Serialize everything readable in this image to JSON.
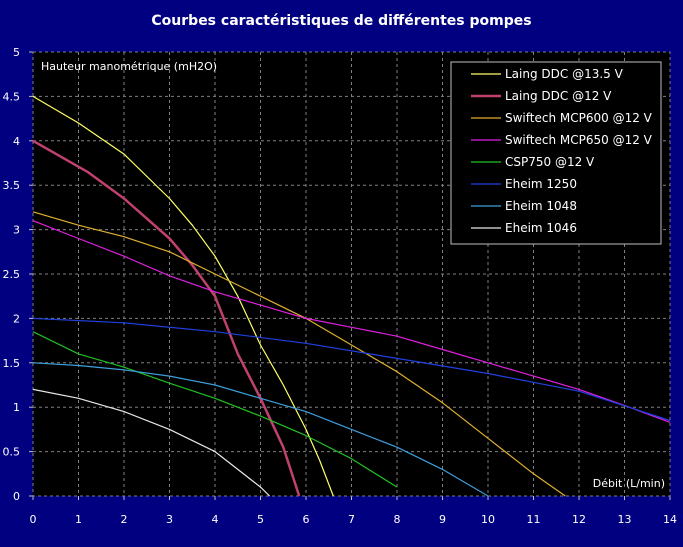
{
  "chart_data": {
    "type": "line",
    "title": "Courbes caractéristiques de différentes pompes",
    "ylabel": "Hauteur manométrique (mH2O)",
    "xlabel": "Débit (L/min)",
    "xlim": [
      0,
      14
    ],
    "ylim": [
      0,
      5
    ],
    "xticks": [
      "0",
      "1",
      "2",
      "3",
      "4",
      "5",
      "6",
      "7",
      "8",
      "9",
      "10",
      "11",
      "12",
      "13",
      "14"
    ],
    "yticks": [
      "0",
      "0.5",
      "1",
      "1.5",
      "2",
      "2.5",
      "3",
      "3.5",
      "4",
      "4.5",
      "5"
    ],
    "grid": true,
    "legend_position": "top-right",
    "series": [
      {
        "name": "Laing DDC @13.5 V",
        "color": "#ffff66",
        "points": [
          [
            0,
            4.5
          ],
          [
            1,
            4.2
          ],
          [
            2,
            3.85
          ],
          [
            3,
            3.35
          ],
          [
            3.5,
            3.05
          ],
          [
            4,
            2.7
          ],
          [
            4.5,
            2.25
          ],
          [
            5,
            1.7
          ],
          [
            5.5,
            1.25
          ],
          [
            6,
            0.75
          ],
          [
            6.3,
            0.4
          ],
          [
            6.6,
            0
          ]
        ]
      },
      {
        "name": "Laing DDC @12 V",
        "color": "#c04070",
        "points": [
          [
            0,
            4.0
          ],
          [
            1.2,
            3.65
          ],
          [
            2,
            3.35
          ],
          [
            3,
            2.9
          ],
          [
            3.5,
            2.6
          ],
          [
            4,
            2.25
          ],
          [
            4.5,
            1.6
          ],
          [
            5,
            1.1
          ],
          [
            5.5,
            0.55
          ],
          [
            5.85,
            0
          ]
        ]
      },
      {
        "name": "Swiftech MCP600 @12 V",
        "color": "#e0b030",
        "points": [
          [
            0,
            3.2
          ],
          [
            1,
            3.05
          ],
          [
            2,
            2.92
          ],
          [
            3,
            2.75
          ],
          [
            4,
            2.5
          ],
          [
            5,
            2.25
          ],
          [
            6,
            2.0
          ],
          [
            7,
            1.7
          ],
          [
            8,
            1.4
          ],
          [
            9,
            1.05
          ],
          [
            10,
            0.65
          ],
          [
            11,
            0.25
          ],
          [
            11.7,
            0
          ]
        ]
      },
      {
        "name": "Swiftech MCP650 @12 V",
        "color": "#e020e0",
        "points": [
          [
            0,
            3.1
          ],
          [
            1,
            2.9
          ],
          [
            2,
            2.7
          ],
          [
            3,
            2.48
          ],
          [
            4,
            2.3
          ],
          [
            5,
            2.15
          ],
          [
            6,
            2.0
          ],
          [
            7,
            1.9
          ],
          [
            8,
            1.8
          ],
          [
            9,
            1.65
          ],
          [
            10,
            1.5
          ],
          [
            11,
            1.35
          ],
          [
            12,
            1.2
          ],
          [
            13,
            1.02
          ],
          [
            14,
            0.83
          ]
        ]
      },
      {
        "name": "CSP750 @12 V",
        "color": "#20c020",
        "points": [
          [
            0,
            1.85
          ],
          [
            1,
            1.6
          ],
          [
            2,
            1.45
          ],
          [
            3,
            1.27
          ],
          [
            4,
            1.1
          ],
          [
            5,
            0.9
          ],
          [
            6,
            0.68
          ],
          [
            7,
            0.42
          ],
          [
            8,
            0.1
          ]
        ]
      },
      {
        "name": "Eheim 1250",
        "color": "#2040e0",
        "points": [
          [
            0,
            2.0
          ],
          [
            2,
            1.95
          ],
          [
            4,
            1.85
          ],
          [
            6,
            1.72
          ],
          [
            8,
            1.55
          ],
          [
            10,
            1.38
          ],
          [
            12,
            1.18
          ],
          [
            14,
            0.85
          ]
        ]
      },
      {
        "name": "Eheim 1048",
        "color": "#3ca0dc",
        "points": [
          [
            0,
            1.5
          ],
          [
            1,
            1.47
          ],
          [
            2,
            1.42
          ],
          [
            3,
            1.35
          ],
          [
            4,
            1.25
          ],
          [
            5,
            1.1
          ],
          [
            6,
            0.95
          ],
          [
            7,
            0.75
          ],
          [
            8,
            0.55
          ],
          [
            9,
            0.3
          ],
          [
            10,
            0
          ]
        ]
      },
      {
        "name": "Eheim 1046",
        "color": "#e8e8e8",
        "points": [
          [
            0,
            1.2
          ],
          [
            1,
            1.1
          ],
          [
            2,
            0.95
          ],
          [
            3,
            0.75
          ],
          [
            4,
            0.5
          ],
          [
            4.5,
            0.3
          ],
          [
            5,
            0.1
          ],
          [
            5.2,
            0
          ]
        ]
      }
    ]
  }
}
